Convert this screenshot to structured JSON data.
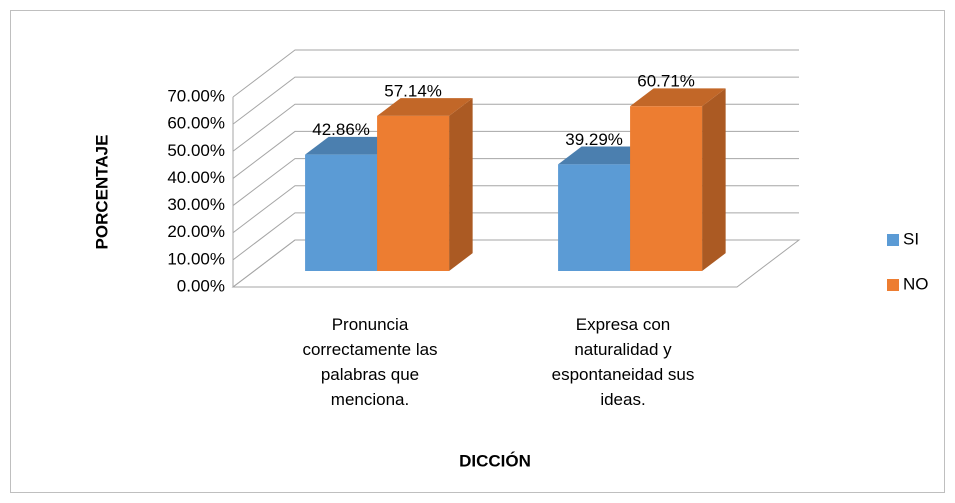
{
  "chart_data": {
    "type": "bar3d",
    "categories": [
      "Pronuncia correctamente las palabras que menciona.",
      "Expresa  con naturalidad y espontaneidad sus ideas."
    ],
    "series": [
      {
        "name": "SI",
        "color": "#5b9bd5",
        "values": [
          42.86,
          39.29
        ],
        "value_labels": [
          "42.86%",
          "39.29%"
        ]
      },
      {
        "name": "NO",
        "color": "#ed7d31",
        "values": [
          57.14,
          60.71
        ],
        "value_labels": [
          "57.14%",
          "60.71%"
        ]
      }
    ],
    "ylim": [
      0,
      70
    ],
    "yticks": [
      {
        "value": 0,
        "label": "0.00%"
      },
      {
        "value": 10,
        "label": "10.00%"
      },
      {
        "value": 20,
        "label": "20.00%"
      },
      {
        "value": 30,
        "label": "30.00%"
      },
      {
        "value": 40,
        "label": "40.00%"
      },
      {
        "value": 50,
        "label": "50.00%"
      },
      {
        "value": 60,
        "label": "60.00%"
      },
      {
        "value": 70,
        "label": "70.00%"
      }
    ],
    "ylabel": "PORCENTAJE",
    "xlabel": "DICCIÓN",
    "grid": true,
    "legend": "right"
  }
}
